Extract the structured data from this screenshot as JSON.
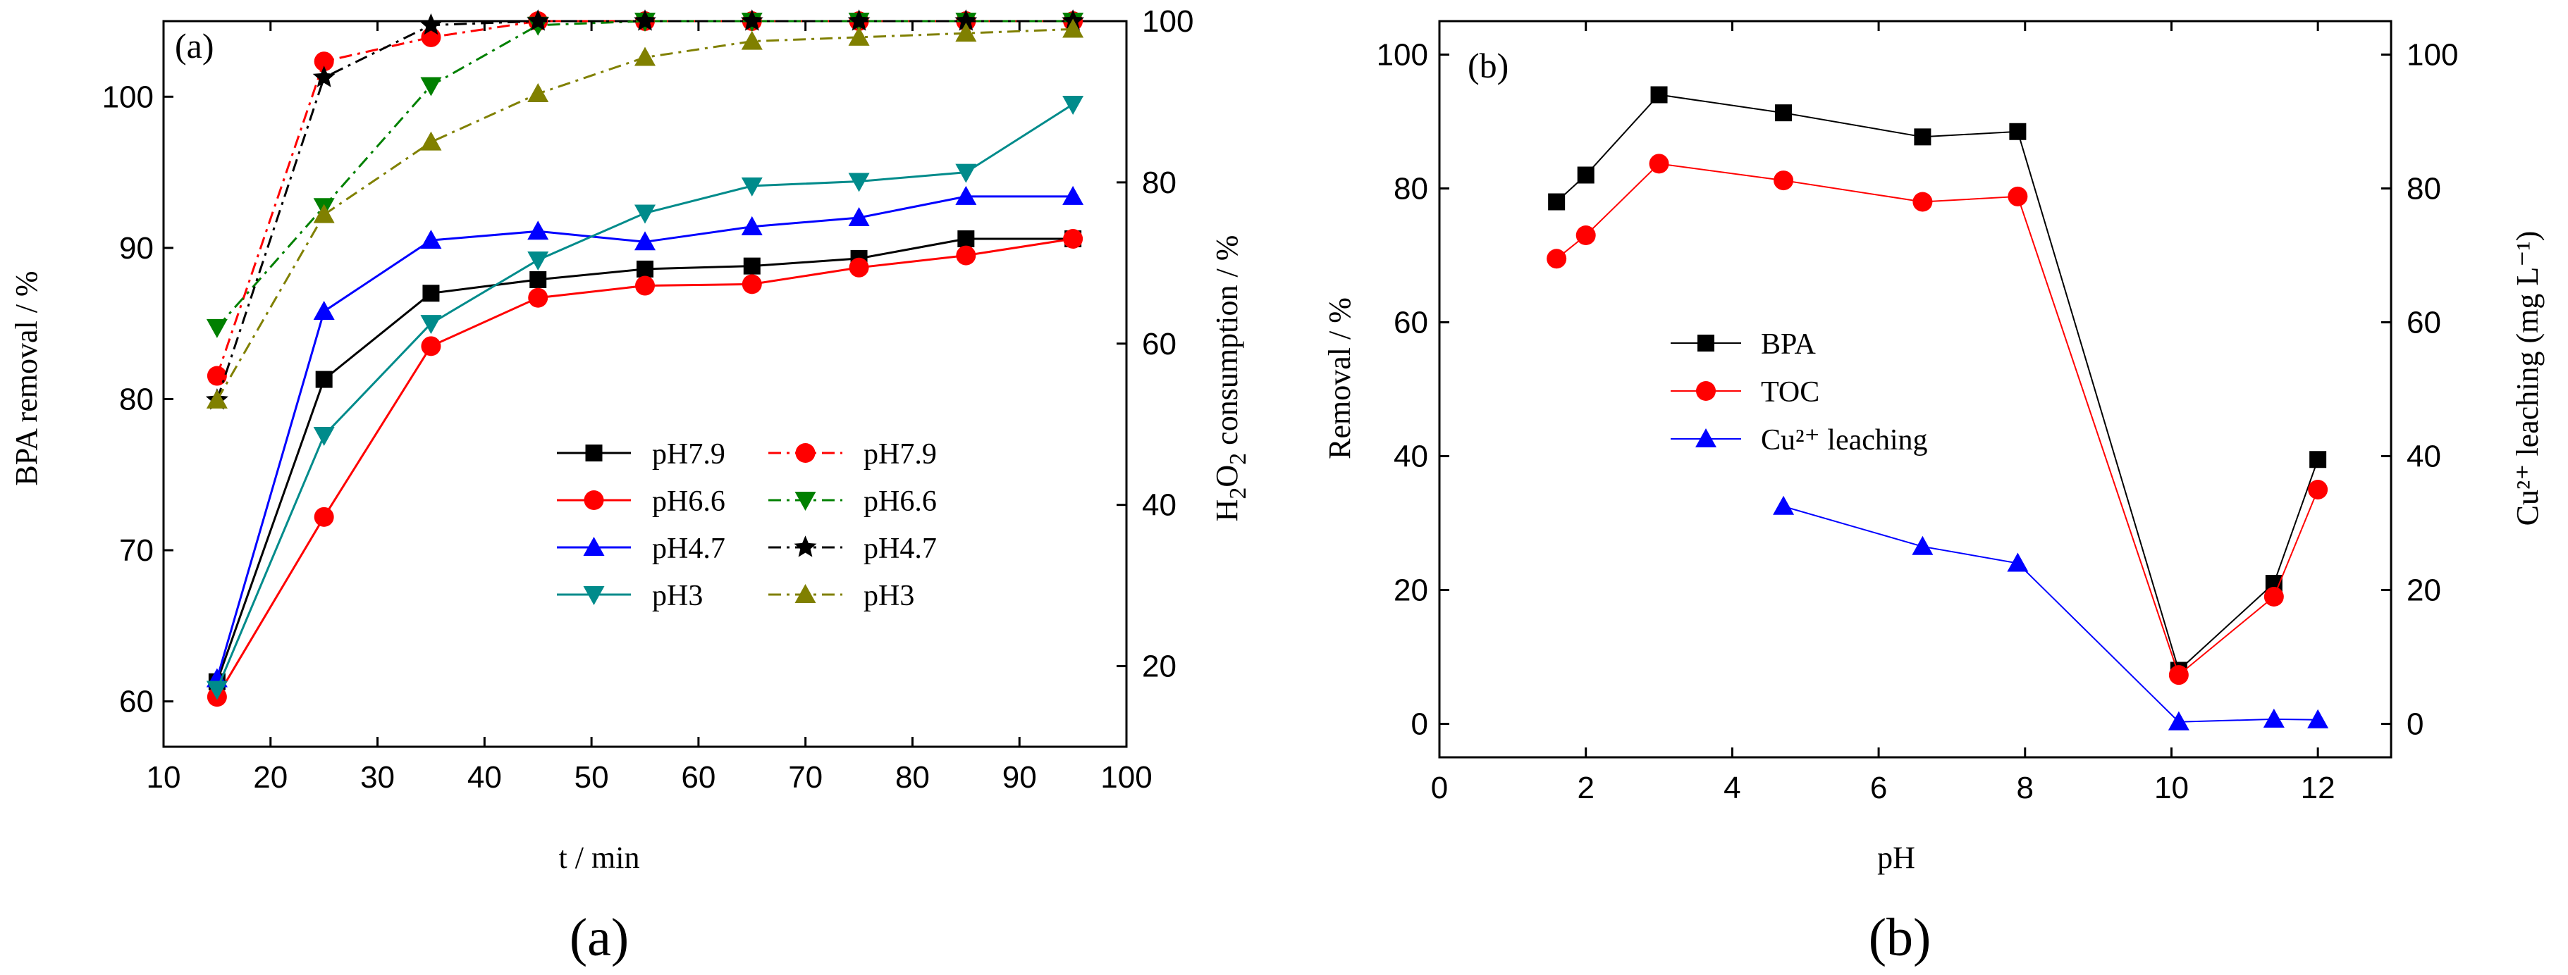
{
  "chart_data": [
    {
      "panel": "a",
      "type": "line",
      "panel_tag": "(a)",
      "caption": "(a)",
      "xlabel": "t / min",
      "ylabel": "BPA removal  / %",
      "y2label_main": "H",
      "y2label_sub1": "2",
      "y2label_mid": "O",
      "y2label_sub2": "2",
      "y2label_rest": " consumption  / %",
      "xlim": [
        10,
        100
      ],
      "ylim": [
        57,
        105
      ],
      "y2lim": [
        10,
        100
      ],
      "xticks": [
        10,
        20,
        30,
        40,
        50,
        60,
        70,
        80,
        90,
        100
      ],
      "yticks": [
        60,
        70,
        80,
        90,
        100
      ],
      "y2ticks": [
        20,
        40,
        60,
        80,
        100
      ],
      "x": [
        15,
        25,
        35,
        45,
        55,
        65,
        75,
        85,
        95
      ],
      "series": [
        {
          "name": "pH7.9",
          "axis": "left",
          "color": "#000000",
          "marker": "square",
          "dash": "solid",
          "values": [
            61.3,
            81.3,
            87.0,
            87.9,
            88.6,
            88.8,
            89.3,
            90.6,
            90.6
          ]
        },
        {
          "name": "pH6.6",
          "axis": "left",
          "color": "#ff0000",
          "marker": "circle",
          "dash": "solid",
          "values": [
            60.3,
            72.2,
            83.5,
            86.7,
            87.5,
            87.6,
            88.7,
            89.5,
            90.6
          ]
        },
        {
          "name": "pH4.7",
          "axis": "left",
          "color": "#0000ff",
          "marker": "triangle-up",
          "dash": "solid",
          "values": [
            61.5,
            85.8,
            90.5,
            91.1,
            90.4,
            91.4,
            92.0,
            93.4,
            93.4
          ]
        },
        {
          "name": "pH3",
          "axis": "left",
          "color": "#008b8b",
          "marker": "triangle-down",
          "dash": "solid",
          "values": [
            60.8,
            77.6,
            85.0,
            89.2,
            92.3,
            94.1,
            94.4,
            95.0,
            99.5
          ]
        },
        {
          "name": "pH7.9",
          "axis": "right",
          "color": "#ff0000",
          "marker": "circle",
          "dash": "dashdot",
          "values": [
            56,
            95,
            98,
            100,
            100,
            100,
            100,
            100,
            100
          ]
        },
        {
          "name": "pH6.6",
          "axis": "right",
          "color": "#008000",
          "marker": "triangle-down",
          "dash": "dashdot",
          "values": [
            62,
            77,
            92,
            99.5,
            100,
            100,
            100,
            100,
            100
          ]
        },
        {
          "name": "pH4.7",
          "axis": "right",
          "color": "#000000",
          "marker": "star",
          "dash": "dashdot",
          "values": [
            53,
            93,
            99.5,
            100,
            100,
            100,
            100,
            100,
            100
          ]
        },
        {
          "name": "pH3",
          "axis": "right",
          "color": "#808000",
          "marker": "triangle-up",
          "dash": "dashdot",
          "values": [
            53,
            76,
            85,
            91,
            95.5,
            97.5,
            98,
            98.5,
            99
          ]
        }
      ],
      "legend_left": [
        "pH7.9",
        "pH6.6",
        "pH4.7",
        "pH3"
      ],
      "legend_right": [
        "pH7.9",
        "pH6.6",
        "pH4.7",
        "pH3"
      ]
    },
    {
      "panel": "b",
      "type": "line",
      "panel_tag": "(b)",
      "caption": "(b)",
      "xlabel": "pH",
      "ylabel": "Removal  / %",
      "y2label": "Cu²⁺ leaching (mg L⁻¹)",
      "xlim": [
        0,
        13
      ],
      "ylim": [
        -5,
        105
      ],
      "y2lim": [
        -5,
        105
      ],
      "xticks": [
        0,
        2,
        4,
        6,
        8,
        10,
        12
      ],
      "yticks": [
        0,
        20,
        40,
        60,
        80,
        100
      ],
      "y2ticks": [
        0,
        20,
        40,
        60,
        80,
        100
      ],
      "series": [
        {
          "name": "BPA",
          "axis": "left",
          "color": "#000000",
          "marker": "square",
          "x": [
            1.6,
            2.0,
            3.0,
            4.7,
            6.6,
            7.9,
            10.1,
            11.4,
            12.0
          ],
          "values": [
            78,
            82,
            94,
            91.3,
            87.7,
            88.5,
            8.0,
            21.0,
            39.5
          ]
        },
        {
          "name": "TOC",
          "axis": "left",
          "color": "#ff0000",
          "marker": "circle",
          "x": [
            1.6,
            2.0,
            3.0,
            4.7,
            6.6,
            7.9,
            10.1,
            11.4,
            12.0
          ],
          "values": [
            69.5,
            73,
            83.7,
            81.2,
            78,
            78.8,
            7.3,
            19.0,
            35.0
          ]
        },
        {
          "name": "Cu leaching",
          "axis": "right",
          "color": "#0000ff",
          "marker": "triangle-up",
          "x": [
            4.7,
            6.6,
            7.9,
            10.1,
            11.4,
            12.0
          ],
          "values": [
            32.5,
            26.5,
            24,
            0.3,
            0.7,
            0.6
          ]
        }
      ],
      "legend": [
        "BPA",
        "TOC",
        "Cu²⁺ leaching"
      ]
    }
  ]
}
